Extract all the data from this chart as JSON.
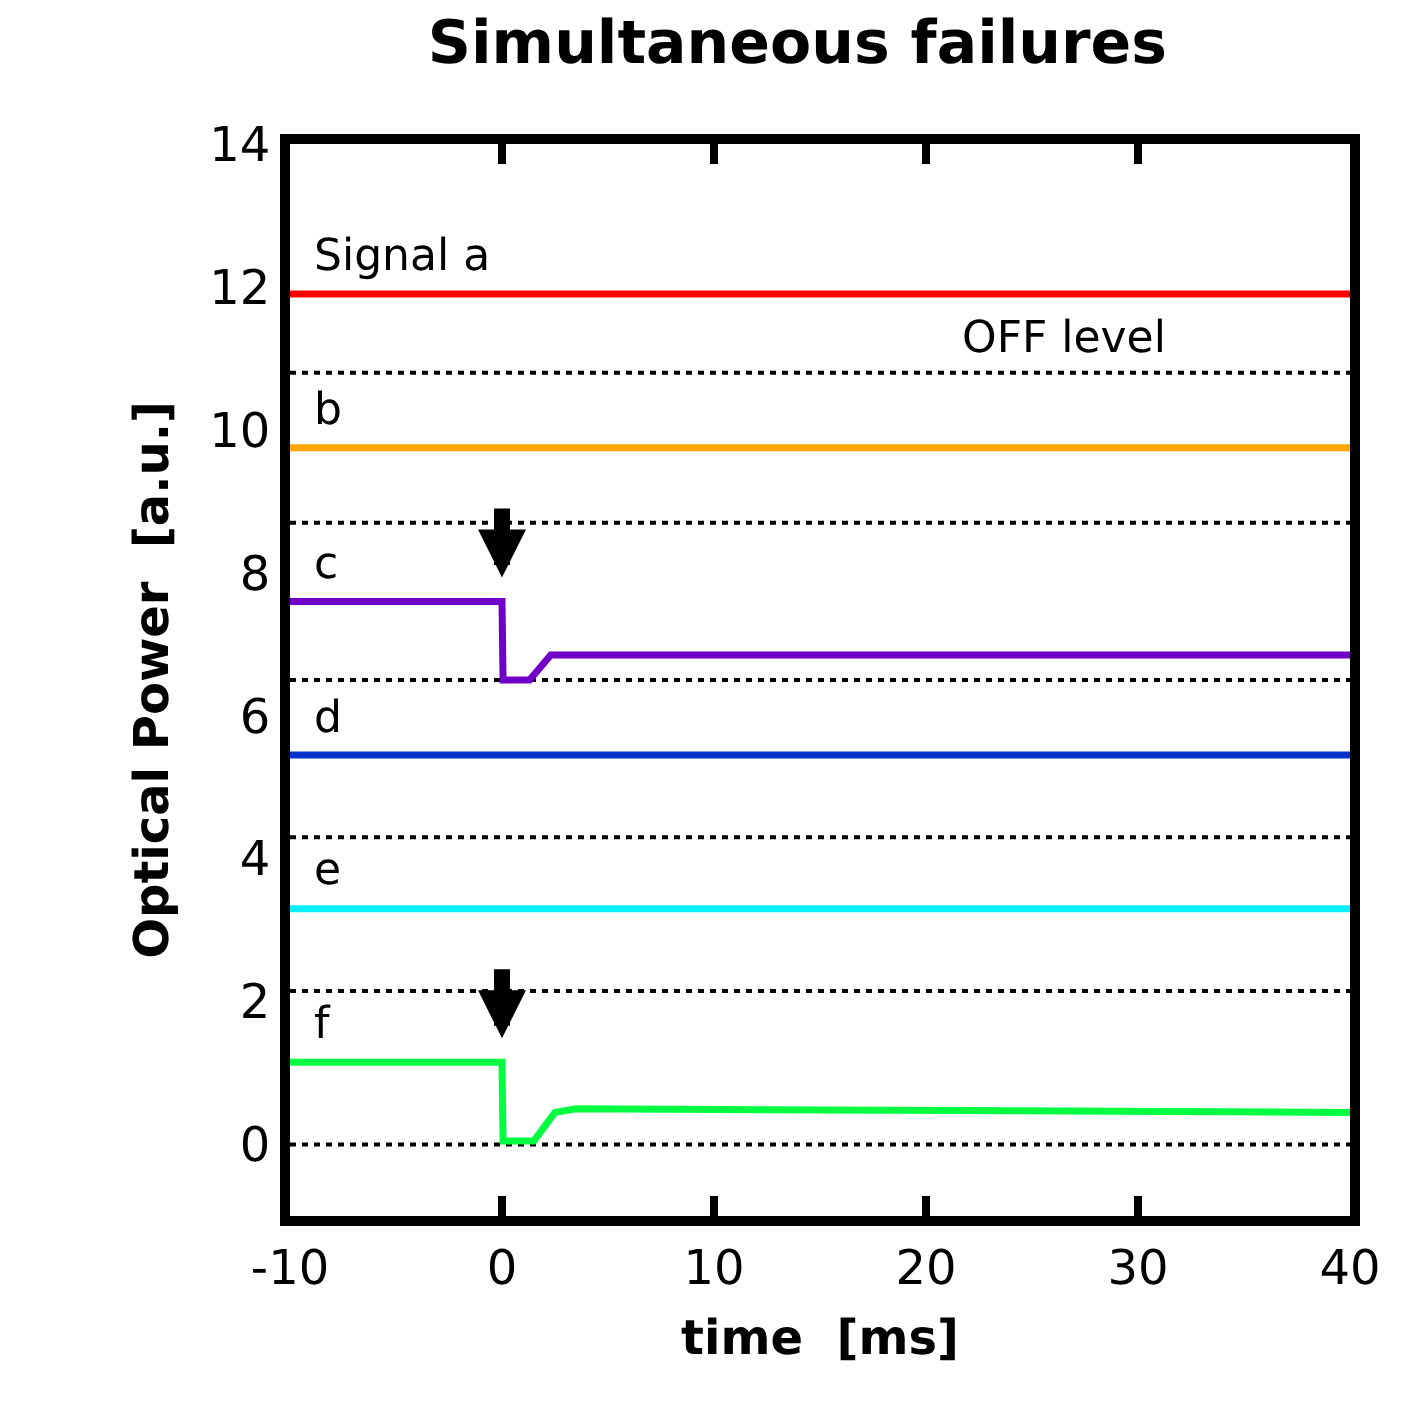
{
  "chart_data": {
    "type": "line",
    "title": "Simultaneous failures",
    "xlabel": "time  [ms]",
    "ylabel": "Optical Power  [a.u.]",
    "xlim": [
      -10,
      40
    ],
    "xticks": [
      -10,
      0,
      10,
      20,
      30,
      40
    ],
    "ylim": [
      -1,
      14
    ],
    "yticks": [
      0,
      2,
      4,
      6,
      8,
      10,
      12,
      14
    ],
    "grid": false,
    "legend": false,
    "marker": "none",
    "line_style": "solid",
    "series": [
      {
        "name": "Signal a",
        "color": "#ff0000",
        "x": [
          -10,
          40
        ],
        "values": [
          11.9,
          11.9
        ]
      },
      {
        "name": "b",
        "color": "#ffa500",
        "x": [
          -10,
          40
        ],
        "values": [
          9.75,
          9.75
        ]
      },
      {
        "name": "c",
        "color": "#7000c8",
        "x": [
          -10,
          0,
          0.05,
          1.3,
          2.3,
          40
        ],
        "values": [
          7.6,
          7.6,
          6.5,
          6.5,
          6.85,
          6.85
        ]
      },
      {
        "name": "d",
        "color": "#0033cc",
        "x": [
          -10,
          40
        ],
        "values": [
          5.45,
          5.45
        ]
      },
      {
        "name": "e",
        "color": "#00f0ff",
        "x": [
          -10,
          40
        ],
        "values": [
          3.3,
          3.3
        ]
      },
      {
        "name": "f",
        "color": "#00ff40",
        "x": [
          -10,
          0,
          0.05,
          1.5,
          2.5,
          3.5,
          40
        ],
        "values": [
          1.15,
          1.15,
          0.05,
          0.05,
          0.45,
          0.5,
          0.45
        ]
      }
    ],
    "ref_lines": [
      {
        "axis": "y",
        "value": 10.8,
        "color": "#000000",
        "line_style": "dotted"
      },
      {
        "axis": "y",
        "value": 8.7,
        "color": "#000000",
        "line_style": "dotted"
      },
      {
        "axis": "y",
        "value": 6.5,
        "color": "#000000",
        "line_style": "dotted"
      },
      {
        "axis": "y",
        "value": 4.3,
        "color": "#000000",
        "line_style": "dotted"
      },
      {
        "axis": "y",
        "value": 2.15,
        "color": "#000000",
        "line_style": "dotted"
      },
      {
        "axis": "y",
        "value": 0,
        "color": "#000000",
        "line_style": "dotted"
      }
    ],
    "annotations": [
      {
        "text": "OFF level",
        "x": 26.5,
        "y": 10.8
      }
    ]
  }
}
